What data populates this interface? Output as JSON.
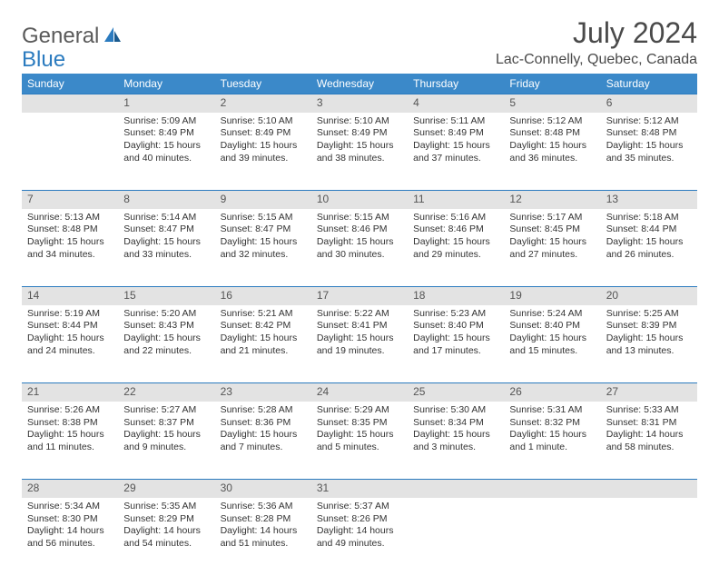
{
  "logo": {
    "text1": "General",
    "text2": "Blue",
    "color1": "#5a5a5a",
    "color2": "#2b7bbf"
  },
  "title": "July 2024",
  "location": "Lac-Connelly, Quebec, Canada",
  "colors": {
    "header_bg": "#3b89c9",
    "header_text": "#ffffff",
    "daynum_bg": "#e3e3e3",
    "daynum_text": "#555555",
    "border_top": "#2b7bbf",
    "body_text": "#333333"
  },
  "weekdays": [
    "Sunday",
    "Monday",
    "Tuesday",
    "Wednesday",
    "Thursday",
    "Friday",
    "Saturday"
  ],
  "weeks": [
    {
      "nums": [
        "",
        "1",
        "2",
        "3",
        "4",
        "5",
        "6"
      ],
      "cells": [
        null,
        {
          "sunrise": "Sunrise: 5:09 AM",
          "sunset": "Sunset: 8:49 PM",
          "daylight": "Daylight: 15 hours and 40 minutes."
        },
        {
          "sunrise": "Sunrise: 5:10 AM",
          "sunset": "Sunset: 8:49 PM",
          "daylight": "Daylight: 15 hours and 39 minutes."
        },
        {
          "sunrise": "Sunrise: 5:10 AM",
          "sunset": "Sunset: 8:49 PM",
          "daylight": "Daylight: 15 hours and 38 minutes."
        },
        {
          "sunrise": "Sunrise: 5:11 AM",
          "sunset": "Sunset: 8:49 PM",
          "daylight": "Daylight: 15 hours and 37 minutes."
        },
        {
          "sunrise": "Sunrise: 5:12 AM",
          "sunset": "Sunset: 8:48 PM",
          "daylight": "Daylight: 15 hours and 36 minutes."
        },
        {
          "sunrise": "Sunrise: 5:12 AM",
          "sunset": "Sunset: 8:48 PM",
          "daylight": "Daylight: 15 hours and 35 minutes."
        }
      ]
    },
    {
      "nums": [
        "7",
        "8",
        "9",
        "10",
        "11",
        "12",
        "13"
      ],
      "cells": [
        {
          "sunrise": "Sunrise: 5:13 AM",
          "sunset": "Sunset: 8:48 PM",
          "daylight": "Daylight: 15 hours and 34 minutes."
        },
        {
          "sunrise": "Sunrise: 5:14 AM",
          "sunset": "Sunset: 8:47 PM",
          "daylight": "Daylight: 15 hours and 33 minutes."
        },
        {
          "sunrise": "Sunrise: 5:15 AM",
          "sunset": "Sunset: 8:47 PM",
          "daylight": "Daylight: 15 hours and 32 minutes."
        },
        {
          "sunrise": "Sunrise: 5:15 AM",
          "sunset": "Sunset: 8:46 PM",
          "daylight": "Daylight: 15 hours and 30 minutes."
        },
        {
          "sunrise": "Sunrise: 5:16 AM",
          "sunset": "Sunset: 8:46 PM",
          "daylight": "Daylight: 15 hours and 29 minutes."
        },
        {
          "sunrise": "Sunrise: 5:17 AM",
          "sunset": "Sunset: 8:45 PM",
          "daylight": "Daylight: 15 hours and 27 minutes."
        },
        {
          "sunrise": "Sunrise: 5:18 AM",
          "sunset": "Sunset: 8:44 PM",
          "daylight": "Daylight: 15 hours and 26 minutes."
        }
      ]
    },
    {
      "nums": [
        "14",
        "15",
        "16",
        "17",
        "18",
        "19",
        "20"
      ],
      "cells": [
        {
          "sunrise": "Sunrise: 5:19 AM",
          "sunset": "Sunset: 8:44 PM",
          "daylight": "Daylight: 15 hours and 24 minutes."
        },
        {
          "sunrise": "Sunrise: 5:20 AM",
          "sunset": "Sunset: 8:43 PM",
          "daylight": "Daylight: 15 hours and 22 minutes."
        },
        {
          "sunrise": "Sunrise: 5:21 AM",
          "sunset": "Sunset: 8:42 PM",
          "daylight": "Daylight: 15 hours and 21 minutes."
        },
        {
          "sunrise": "Sunrise: 5:22 AM",
          "sunset": "Sunset: 8:41 PM",
          "daylight": "Daylight: 15 hours and 19 minutes."
        },
        {
          "sunrise": "Sunrise: 5:23 AM",
          "sunset": "Sunset: 8:40 PM",
          "daylight": "Daylight: 15 hours and 17 minutes."
        },
        {
          "sunrise": "Sunrise: 5:24 AM",
          "sunset": "Sunset: 8:40 PM",
          "daylight": "Daylight: 15 hours and 15 minutes."
        },
        {
          "sunrise": "Sunrise: 5:25 AM",
          "sunset": "Sunset: 8:39 PM",
          "daylight": "Daylight: 15 hours and 13 minutes."
        }
      ]
    },
    {
      "nums": [
        "21",
        "22",
        "23",
        "24",
        "25",
        "26",
        "27"
      ],
      "cells": [
        {
          "sunrise": "Sunrise: 5:26 AM",
          "sunset": "Sunset: 8:38 PM",
          "daylight": "Daylight: 15 hours and 11 minutes."
        },
        {
          "sunrise": "Sunrise: 5:27 AM",
          "sunset": "Sunset: 8:37 PM",
          "daylight": "Daylight: 15 hours and 9 minutes."
        },
        {
          "sunrise": "Sunrise: 5:28 AM",
          "sunset": "Sunset: 8:36 PM",
          "daylight": "Daylight: 15 hours and 7 minutes."
        },
        {
          "sunrise": "Sunrise: 5:29 AM",
          "sunset": "Sunset: 8:35 PM",
          "daylight": "Daylight: 15 hours and 5 minutes."
        },
        {
          "sunrise": "Sunrise: 5:30 AM",
          "sunset": "Sunset: 8:34 PM",
          "daylight": "Daylight: 15 hours and 3 minutes."
        },
        {
          "sunrise": "Sunrise: 5:31 AM",
          "sunset": "Sunset: 8:32 PM",
          "daylight": "Daylight: 15 hours and 1 minute."
        },
        {
          "sunrise": "Sunrise: 5:33 AM",
          "sunset": "Sunset: 8:31 PM",
          "daylight": "Daylight: 14 hours and 58 minutes."
        }
      ]
    },
    {
      "nums": [
        "28",
        "29",
        "30",
        "31",
        "",
        "",
        ""
      ],
      "cells": [
        {
          "sunrise": "Sunrise: 5:34 AM",
          "sunset": "Sunset: 8:30 PM",
          "daylight": "Daylight: 14 hours and 56 minutes."
        },
        {
          "sunrise": "Sunrise: 5:35 AM",
          "sunset": "Sunset: 8:29 PM",
          "daylight": "Daylight: 14 hours and 54 minutes."
        },
        {
          "sunrise": "Sunrise: 5:36 AM",
          "sunset": "Sunset: 8:28 PM",
          "daylight": "Daylight: 14 hours and 51 minutes."
        },
        {
          "sunrise": "Sunrise: 5:37 AM",
          "sunset": "Sunset: 8:26 PM",
          "daylight": "Daylight: 14 hours and 49 minutes."
        },
        null,
        null,
        null
      ]
    }
  ]
}
